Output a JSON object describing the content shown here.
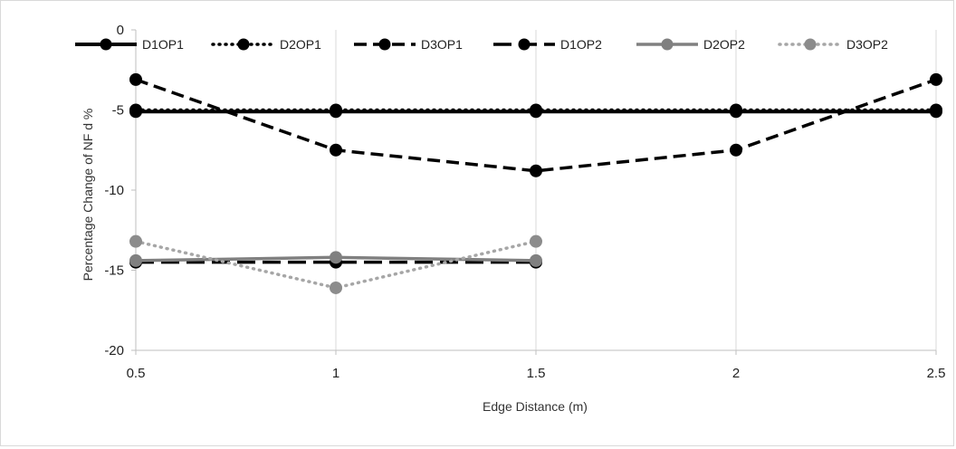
{
  "chart_data": {
    "type": "line",
    "title": "",
    "xlabel": "Edge Distance (m)",
    "ylabel": "Percentage Change of NF d %",
    "xlim": [
      0.5,
      2.5
    ],
    "ylim": [
      -20,
      0
    ],
    "x_ticks": [
      "0.5",
      "1",
      "1.5",
      "2",
      "2.5"
    ],
    "y_ticks": [
      "0",
      "-5",
      "-10",
      "-15",
      "-20"
    ],
    "grid": "vertical",
    "legend_position": "top",
    "series": [
      {
        "name": "D1OP1",
        "color": "#000000",
        "dash": "solid",
        "marker_color": "#000000",
        "points": [
          [
            0.5,
            -5.1
          ],
          [
            1,
            -5.1
          ],
          [
            1.5,
            -5.1
          ],
          [
            2,
            -5.1
          ],
          [
            2.5,
            -5.1
          ]
        ]
      },
      {
        "name": "D2OP1",
        "color": "#000000",
        "dash": "dotted",
        "marker_color": "#000000",
        "points": [
          [
            0.5,
            -5.0
          ],
          [
            1,
            -5.0
          ],
          [
            1.5,
            -5.0
          ],
          [
            2,
            -5.0
          ],
          [
            2.5,
            -5.0
          ]
        ]
      },
      {
        "name": "D3OP1",
        "color": "#000000",
        "dash": "dashed",
        "marker_color": "#000000",
        "points": [
          [
            0.5,
            -3.1
          ],
          [
            1,
            -7.5
          ],
          [
            1.5,
            -8.8
          ],
          [
            2,
            -7.5
          ],
          [
            2.5,
            -3.1
          ]
        ]
      },
      {
        "name": "D1OP2",
        "color": "#000000",
        "dash": "longdash",
        "marker_color": "#000000",
        "points": [
          [
            0.5,
            -14.5
          ],
          [
            1,
            -14.5
          ],
          [
            1.5,
            -14.5
          ]
        ]
      },
      {
        "name": "D2OP2",
        "color": "#808080",
        "dash": "solid",
        "marker_color": "#808080",
        "points": [
          [
            0.5,
            -14.4
          ],
          [
            1,
            -14.2
          ],
          [
            1.5,
            -14.4
          ]
        ]
      },
      {
        "name": "D3OP2",
        "color": "#a6a6a6",
        "dash": "dotted",
        "marker_color": "#8c8c8c",
        "points": [
          [
            0.5,
            -13.2
          ],
          [
            1,
            -16.1
          ],
          [
            1.5,
            -13.2
          ]
        ]
      }
    ]
  }
}
